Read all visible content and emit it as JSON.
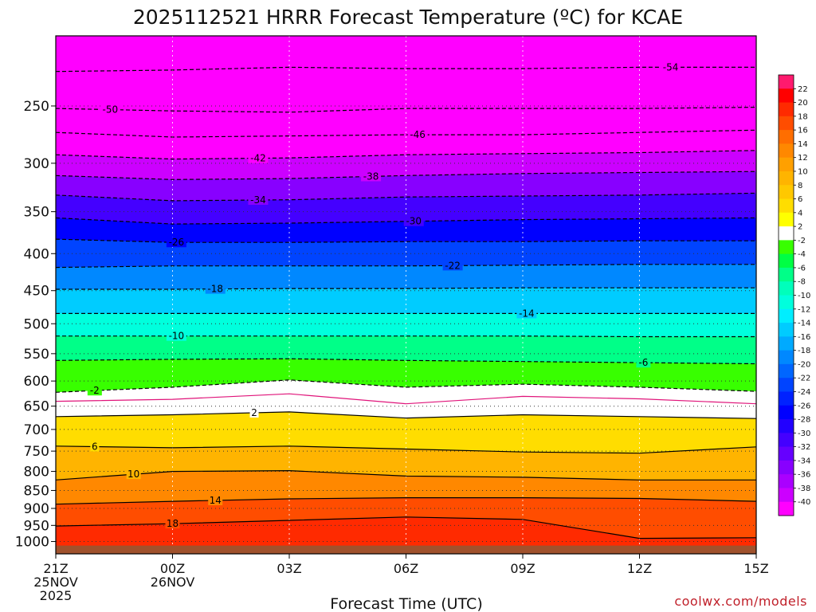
{
  "chart_data": {
    "type": "heatmap",
    "title": "2025112521 HRRR Forecast Temperature (ºC) for KCAE",
    "xlabel": "Forecast Time (UTC)",
    "ylabel": "",
    "credit": "coolwx.com/models",
    "x_hours": [
      0,
      15
    ],
    "x_ticks": [
      {
        "hour": 0,
        "label": "21Z",
        "sub1": "25NOV",
        "sub2": "2025"
      },
      {
        "hour": 3,
        "label": "00Z",
        "sub1": "26NOV",
        "sub2": ""
      },
      {
        "hour": 6,
        "label": "03Z",
        "sub1": "",
        "sub2": ""
      },
      {
        "hour": 9,
        "label": "06Z",
        "sub1": "",
        "sub2": ""
      },
      {
        "hour": 12,
        "label": "09Z",
        "sub1": "",
        "sub2": ""
      },
      {
        "hour": 15,
        "label": "12Z",
        "sub1": "",
        "sub2": ""
      },
      {
        "hour": 18,
        "label": "15Z",
        "sub1": "",
        "sub2": ""
      }
    ],
    "y_axis": {
      "units": "hPa",
      "top": 200,
      "bottom": 1040,
      "scale": "log"
    },
    "y_ticks": [
      "250",
      "300",
      "350",
      "400",
      "450",
      "500",
      "550",
      "600",
      "650",
      "700",
      "750",
      "800",
      "850",
      "900",
      "950",
      "1000"
    ],
    "ground_level_hpa": 1013,
    "ground_color": "#a0522d",
    "colorbar": {
      "ticks": [
        "22",
        "20",
        "18",
        "16",
        "14",
        "12",
        "10",
        "8",
        "6",
        "4",
        "2",
        "-2",
        "-4",
        "-6",
        "-8",
        "-10",
        "-12",
        "-14",
        "-16",
        "-18",
        "-20",
        "-22",
        "-24",
        "-26",
        "-28",
        "-30",
        "-32",
        "-34",
        "-36",
        "-38",
        "-40"
      ],
      "colors": [
        "#ff1a6e",
        "#ff0000",
        "#ff2a00",
        "#ff4d00",
        "#ff6e00",
        "#ff8800",
        "#ffa000",
        "#ffb400",
        "#ffc800",
        "#ffdd00",
        "#ffff00",
        "#ffffff",
        "#38ff00",
        "#00ff44",
        "#00ff88",
        "#00ffbb",
        "#00ffdd",
        "#00eeff",
        "#00ccff",
        "#00aaff",
        "#0088ff",
        "#0066ff",
        "#0044ff",
        "#0022ff",
        "#0000ff",
        "#2200ff",
        "#4400ff",
        "#6600ff",
        "#8800ff",
        "#aa00ff",
        "#cc00ff",
        "#ff00ff"
      ]
    },
    "profile_hours": [
      0,
      3,
      6,
      9,
      12,
      15,
      18
    ],
    "profile_temp_c_at_hpa": {
      "1000": [
        19,
        18,
        18,
        18,
        18,
        17,
        17
      ],
      "900": [
        15,
        15,
        14,
        14,
        14,
        13,
        12
      ],
      "800": [
        9,
        10,
        10,
        10,
        10,
        9,
        9
      ],
      "700": [
        3,
        3,
        3,
        2,
        2,
        2,
        2
      ],
      "600": [
        -2,
        -3,
        -3,
        -2,
        -3,
        -3,
        -3
      ],
      "500": [
        -11,
        -12,
        -12,
        -12,
        -13,
        -13,
        -13
      ],
      "400": [
        -24,
        -25,
        -26,
        -26,
        -27,
        -27,
        -27
      ],
      "300": [
        -41,
        -42,
        -43,
        -43,
        -42,
        -42,
        -42
      ]
    },
    "contours": [
      {
        "value": -54,
        "label": "-54",
        "style": "dash",
        "hpa": [
          224,
          223,
          221,
          222,
          222,
          221,
          221
        ]
      },
      {
        "value": -50,
        "label": "-50",
        "style": "dash",
        "hpa": [
          252,
          254,
          255,
          252,
          252,
          252,
          251
        ]
      },
      {
        "value": -46,
        "label": "-46",
        "style": "dash",
        "hpa": [
          272,
          276,
          275,
          274,
          274,
          272,
          270
        ]
      },
      {
        "value": -42,
        "label": "-42",
        "style": "dash",
        "hpa": [
          292,
          296,
          295,
          292,
          291,
          290,
          288
        ]
      },
      {
        "value": -38,
        "label": "-38",
        "style": "dash",
        "hpa": [
          312,
          316,
          315,
          312,
          310,
          309,
          308
        ]
      },
      {
        "value": -34,
        "label": "-34",
        "style": "dash",
        "hpa": [
          332,
          338,
          337,
          334,
          333,
          332,
          330
        ]
      },
      {
        "value": -30,
        "label": "-30",
        "style": "dash",
        "hpa": [
          357,
          364,
          363,
          361,
          359,
          358,
          357
        ]
      },
      {
        "value": -26,
        "label": "-26",
        "style": "dash",
        "hpa": [
          382,
          386,
          386,
          385,
          385,
          384,
          384
        ]
      },
      {
        "value": -22,
        "label": "-22",
        "style": "dash",
        "hpa": [
          418,
          416,
          416,
          416,
          415,
          414,
          414
        ]
      },
      {
        "value": -18,
        "label": "-18",
        "style": "dash",
        "hpa": [
          448,
          448,
          447,
          447,
          446,
          446,
          446
        ]
      },
      {
        "value": -14,
        "label": "-14",
        "style": "dash",
        "hpa": [
          484,
          484,
          484,
          484,
          484,
          484,
          484
        ]
      },
      {
        "value": -10,
        "label": "-10",
        "style": "dash",
        "hpa": [
          520,
          520,
          520,
          520,
          520,
          521,
          521
        ]
      },
      {
        "value": -6,
        "label": "-6",
        "style": "dash",
        "hpa": [
          562,
          560,
          559,
          562,
          564,
          566,
          568
        ]
      },
      {
        "value": -2,
        "label": "-2",
        "style": "dash",
        "hpa": [
          622,
          612,
          598,
          612,
          606,
          612,
          620
        ]
      },
      {
        "value": 0,
        "label": "",
        "style": "magenta",
        "hpa": [
          640,
          636,
          625,
          645,
          630,
          635,
          645
        ]
      },
      {
        "value": 2,
        "label": "2",
        "style": "solid",
        "hpa": [
          672,
          668,
          662,
          675,
          668,
          672,
          676
        ]
      },
      {
        "value": 6,
        "label": "6",
        "style": "solid",
        "hpa": [
          738,
          742,
          738,
          745,
          752,
          755,
          740
        ]
      },
      {
        "value": 10,
        "label": "10",
        "style": "solid",
        "hpa": [
          822,
          800,
          798,
          812,
          815,
          822,
          822
        ]
      },
      {
        "value": 14,
        "label": "14",
        "style": "solid",
        "hpa": [
          888,
          880,
          873,
          870,
          870,
          872,
          880
        ]
      },
      {
        "value": 18,
        "label": "18",
        "style": "solid",
        "hpa": [
          952,
          945,
          935,
          925,
          932,
          990,
          988
        ]
      }
    ],
    "contour_label_hours": {
      "-54": 15.8,
      "-50": 1.4,
      "-46": 9.3,
      "-42": 5.2,
      "-38": 8.1,
      "-34": 5.2,
      "-30": 9.2,
      "-26": 3.1,
      "-22": 10.2,
      "-18": 4.1,
      "-14": 12.1,
      "-10": 3.1,
      "-6": 15.1,
      "-2": 1.0,
      "2": 5.1,
      "6": 1.0,
      "10": 2.0,
      "14": 4.1,
      "18": 3.0
    }
  }
}
